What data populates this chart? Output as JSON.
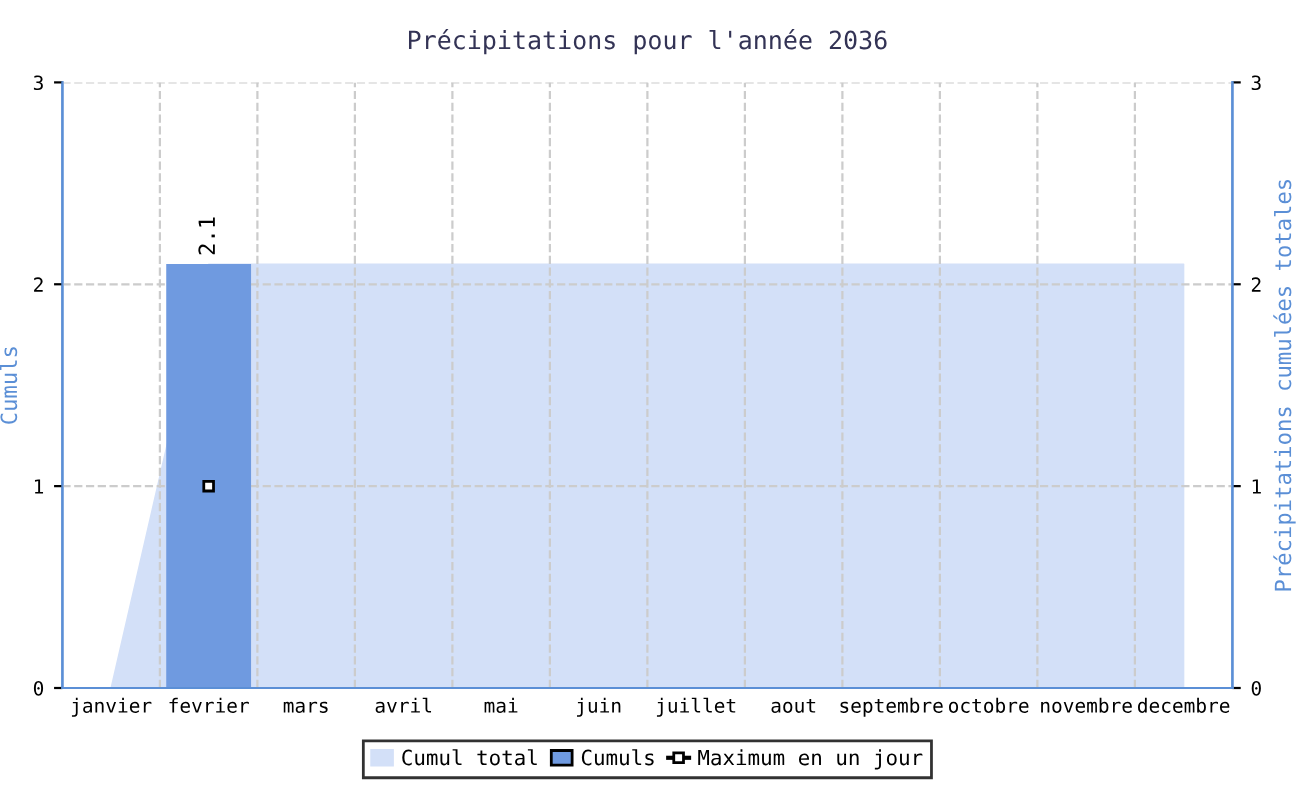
{
  "chart_data": {
    "type": "bar",
    "title": "Précipitations pour l'année 2036",
    "ylabel": "Cumuls",
    "y2label": "Précipitations cumulées totales",
    "categories": [
      "janvier",
      "fevrier",
      "mars",
      "avril",
      "mai",
      "juin",
      "juillet",
      "aout",
      "septembre",
      "octobre",
      "novembre",
      "decembre"
    ],
    "series": [
      {
        "name": "Cumul total",
        "type": "area",
        "axis": "y2",
        "color": "#d3e0f8",
        "values": [
          0,
          2.1,
          2.1,
          2.1,
          2.1,
          2.1,
          2.1,
          2.1,
          2.1,
          2.1,
          2.1,
          2.1
        ]
      },
      {
        "name": "Cumuls",
        "color": "#6f9ae0",
        "values": [
          0,
          2.1,
          0,
          0,
          0,
          0,
          0,
          0,
          0,
          0,
          0,
          0
        ],
        "value_labels": [
          null,
          "2.1",
          null,
          null,
          null,
          null,
          null,
          null,
          null,
          null,
          null,
          null
        ]
      },
      {
        "name": "Maximum en un jour",
        "type": "line",
        "marker": "square",
        "color": "#000000",
        "values": [
          null,
          1,
          null,
          null,
          null,
          null,
          null,
          null,
          null,
          null,
          null,
          null
        ]
      }
    ],
    "ylim": [
      0,
      3
    ],
    "yticks": [
      0,
      1,
      2,
      3
    ],
    "y2lim": [
      0,
      3
    ],
    "y2ticks": [
      0,
      1,
      2,
      3
    ],
    "grid": true,
    "legend": "bottom"
  }
}
